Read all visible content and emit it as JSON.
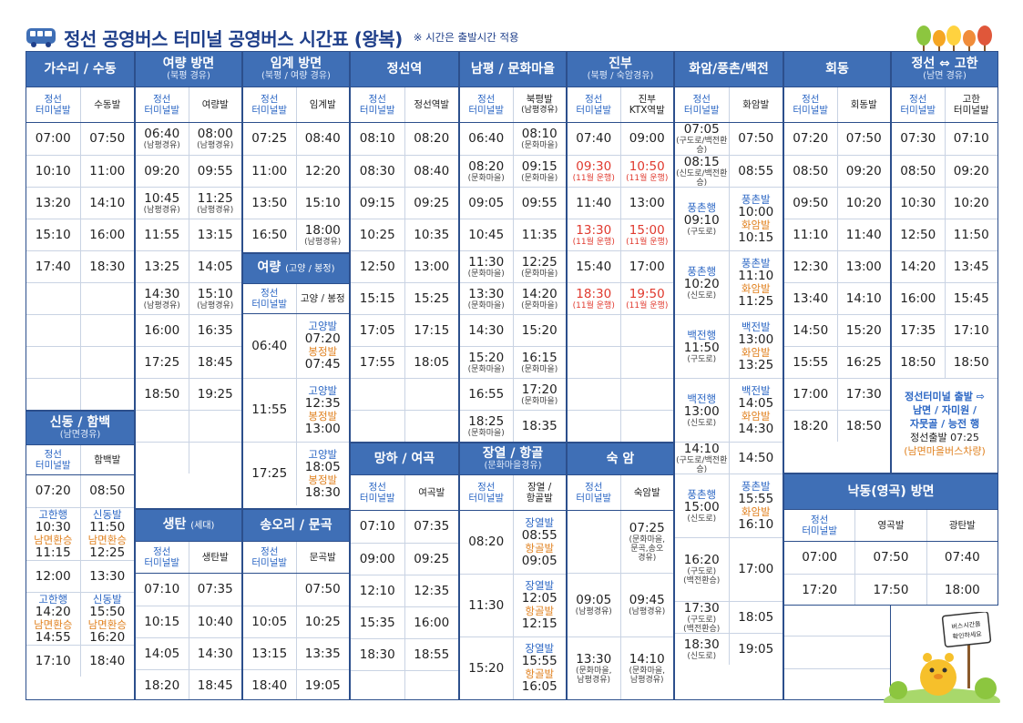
{
  "title": "정선 공영버스 터미널 공영버스 시간표 (왕복)",
  "note": "※ 시간은 출발시간 적용",
  "sign": "버스시간을 확인하세요",
  "routes": {
    "gasuri": {
      "name": "가수리 / 수동",
      "cols": [
        [
          "정선",
          "터미널발"
        ],
        [
          "수동발"
        ]
      ],
      "rows": [
        [
          "07:00",
          "07:50"
        ],
        [
          "10:10",
          "11:00"
        ],
        [
          "13:20",
          "14:10"
        ],
        [
          "15:10",
          "16:00"
        ],
        [
          "17:40",
          "18:30"
        ],
        [
          "",
          ""
        ],
        [
          "",
          ""
        ],
        [
          "",
          ""
        ],
        [
          "",
          ""
        ]
      ]
    },
    "sindong": {
      "name": "신동 / 함백",
      "sub": "(남면경유)",
      "cols": [
        [
          "정선",
          "터미널발"
        ],
        [
          "함백발"
        ]
      ],
      "rows": [
        [
          [
            "07:20"
          ],
          [
            "08:50"
          ]
        ],
        [
          [
            "고한행",
            "10:30",
            "남면환승",
            "11:15"
          ],
          [
            "신동발",
            "11:50",
            "남면환승",
            "12:25"
          ]
        ],
        [
          [
            "12:00"
          ],
          [
            "13:30"
          ]
        ],
        [
          [
            "고한행",
            "14:20",
            "남면환승",
            "14:55"
          ],
          [
            "신동발",
            "15:50",
            "남면환승",
            "16:20"
          ]
        ],
        [
          [
            "17:10"
          ],
          [
            "18:40"
          ]
        ]
      ]
    },
    "yeoryang": {
      "name": "여량 방면",
      "sub": "(북평 경유)",
      "cols": [
        [
          "정선",
          "터미널발"
        ],
        [
          "여량발"
        ]
      ],
      "rows": [
        [
          [
            "06:40",
            "(남평경유)"
          ],
          [
            "08:00",
            "(남평경유)"
          ]
        ],
        [
          [
            "09:20"
          ],
          [
            "09:55"
          ]
        ],
        [
          [
            "10:45",
            "(남평경유)"
          ],
          [
            "11:25",
            "(남평경유)"
          ]
        ],
        [
          [
            "11:55"
          ],
          [
            "13:15"
          ]
        ],
        [
          [
            "13:25"
          ],
          [
            "14:05"
          ]
        ],
        [
          [
            "14:30",
            "(남평경유)"
          ],
          [
            "15:10",
            "(남평경유)"
          ]
        ],
        [
          [
            "16:00"
          ],
          [
            "16:35"
          ]
        ],
        [
          [
            "17:25"
          ],
          [
            "18:45"
          ]
        ],
        [
          [
            "18:50"
          ],
          [
            "19:25"
          ]
        ],
        [
          [
            ""
          ],
          [
            ""
          ]
        ],
        [
          [
            ""
          ],
          [
            ""
          ]
        ]
      ]
    },
    "saengtan": {
      "name": "생탄",
      "sub": "(세대)",
      "cols": [
        [
          "정선",
          "터미널발"
        ],
        [
          "생탄발"
        ]
      ],
      "rows": [
        [
          "07:10",
          "07:35"
        ],
        [
          "10:15",
          "10:40"
        ],
        [
          "14:05",
          "14:30"
        ],
        [
          "18:20",
          "18:45"
        ]
      ]
    },
    "imgye": {
      "name": "임계 방면",
      "sub": "(북평 / 여량 경유)",
      "cols": [
        [
          "정선",
          "터미널발"
        ],
        [
          "임계발"
        ]
      ],
      "rows": [
        [
          [
            "07:25"
          ],
          [
            "08:40"
          ]
        ],
        [
          [
            "11:00"
          ],
          [
            "12:20"
          ]
        ],
        [
          [
            "13:50"
          ],
          [
            "15:10"
          ]
        ],
        [
          [
            "16:50"
          ],
          [
            "18:00",
            "(남평경유)"
          ]
        ]
      ]
    },
    "yeoryang2": {
      "name": "여량",
      "sub": "(고양 / 봉정)",
      "cols": [
        [
          "정선",
          "터미널발"
        ],
        [
          "고양 / 봉정"
        ]
      ],
      "rows": [
        [
          "06:40",
          "고양발",
          "07:20",
          "봉정발",
          "07:45"
        ],
        [
          "11:55",
          "고양발",
          "12:35",
          "봉정발",
          "13:00"
        ],
        [
          "17:25",
          "고양발",
          "18:05",
          "봉정발",
          "18:30"
        ]
      ]
    },
    "songori": {
      "name": "송오리 / 문곡",
      "cols": [
        [
          "정선",
          "터미널발"
        ],
        [
          "문곡발"
        ]
      ],
      "rows": [
        [
          "",
          "07:50"
        ],
        [
          "10:05",
          "10:25"
        ],
        [
          "13:15",
          "13:35"
        ],
        [
          "18:40",
          "19:05"
        ]
      ]
    },
    "jeongseon": {
      "name": "정선역",
      "cols": [
        [
          "정선",
          "터미널발"
        ],
        [
          "정선역발"
        ]
      ],
      "rows": [
        [
          "08:10",
          "08:20"
        ],
        [
          "08:30",
          "08:40"
        ],
        [
          "09:15",
          "09:25"
        ],
        [
          "10:25",
          "10:35"
        ],
        [
          "12:50",
          "13:00"
        ],
        [
          "15:15",
          "15:25"
        ],
        [
          "17:05",
          "17:15"
        ],
        [
          "17:55",
          "18:05"
        ],
        [
          "",
          ""
        ],
        [
          "",
          ""
        ]
      ]
    },
    "mangha": {
      "name": "망하 / 여곡",
      "cols": [
        [
          "정선",
          "터미널발"
        ],
        [
          "여곡발"
        ]
      ],
      "rows": [
        [
          "07:10",
          "07:35"
        ],
        [
          "09:00",
          "09:25"
        ],
        [
          "12:10",
          "12:35"
        ],
        [
          "15:35",
          "16:00"
        ],
        [
          "18:30",
          "18:55"
        ],
        [
          "",
          ""
        ]
      ]
    },
    "nampyeong": {
      "name": "남평 / 문화마을",
      "cols": [
        [
          "정선",
          "터미널발"
        ],
        [
          "북평발",
          "(남평경유)"
        ]
      ],
      "rows": [
        [
          [
            "06:40"
          ],
          [
            "08:10",
            "(문화마을)"
          ]
        ],
        [
          [
            "08:20",
            "(문화마을)"
          ],
          [
            "09:15",
            "(문화마을)"
          ]
        ],
        [
          [
            "09:05"
          ],
          [
            "09:55"
          ]
        ],
        [
          [
            "10:45"
          ],
          [
            "11:35"
          ]
        ],
        [
          [
            "11:30",
            "(문화마을)"
          ],
          [
            "12:25",
            "(문화마을)"
          ]
        ],
        [
          [
            "13:30",
            "(문화마을)"
          ],
          [
            "14:20",
            "(문화마을)"
          ]
        ],
        [
          [
            "14:30"
          ],
          [
            "15:20"
          ]
        ],
        [
          [
            "15:20",
            "(문화마을)"
          ],
          [
            "16:15",
            "(문화마을)"
          ]
        ],
        [
          [
            "16:55"
          ],
          [
            "17:20",
            "(문화마을)"
          ]
        ],
        [
          [
            "18:25",
            "(문화마을)"
          ],
          [
            "18:35"
          ]
        ]
      ]
    },
    "jangyeol": {
      "name": "장열 / 항골",
      "sub": "(문화마을경유)",
      "cols": [
        [
          "정선",
          "터미널발"
        ],
        [
          "장열 /",
          "항골발"
        ]
      ],
      "rows": [
        [
          "08:20",
          "장열발",
          "08:55",
          "항골발",
          "09:05"
        ],
        [
          "11:30",
          "장열발",
          "12:05",
          "항골발",
          "12:15"
        ],
        [
          "15:20",
          "장열발",
          "15:55",
          "항골발",
          "16:05"
        ]
      ]
    },
    "jinbu": {
      "name": "진부",
      "sub": "(북평 / 숙암경유)",
      "cols": [
        [
          "정선",
          "터미널발"
        ],
        [
          "진부",
          "KTX역발"
        ]
      ],
      "rows": [
        [
          [
            "07:40"
          ],
          [
            "09:00"
          ],
          false
        ],
        [
          [
            "09:30",
            "(11월 운행)"
          ],
          [
            "10:50",
            "(11월 운행)"
          ],
          true
        ],
        [
          [
            "11:40"
          ],
          [
            "13:00"
          ],
          false
        ],
        [
          [
            "13:30",
            "(11월 운행)"
          ],
          [
            "15:00",
            "(11월 운행)"
          ],
          true
        ],
        [
          [
            "15:40"
          ],
          [
            "17:00"
          ],
          false
        ],
        [
          [
            "18:30",
            "(11월 운행)"
          ],
          [
            "19:50",
            "(11월 운행)"
          ],
          true
        ],
        [
          [
            ""
          ],
          [
            ""
          ],
          false
        ],
        [
          [
            ""
          ],
          [
            ""
          ],
          false
        ],
        [
          [
            ""
          ],
          [
            ""
          ],
          false
        ],
        [
          [
            ""
          ],
          [
            ""
          ],
          false
        ]
      ]
    },
    "sugam": {
      "name": "숙 암",
      "cols": [
        [
          "정선",
          "터미널발"
        ],
        [
          "숙암발"
        ]
      ],
      "rows": [
        [
          [
            ""
          ],
          [
            "07:25",
            "(문화마을,",
            "문곡,송오",
            "경유)"
          ]
        ],
        [
          [
            "09:05",
            "(남평경유)"
          ],
          [
            "09:45",
            "(남평경유)"
          ]
        ],
        [
          [
            "13:30",
            "(문화마을,",
            "남평경유)"
          ],
          [
            "14:10",
            "(문화마을,",
            "남평경유)"
          ]
        ]
      ]
    },
    "hwaam": {
      "name": "화암/풍촌/백전",
      "cols": [
        [
          "정선",
          "터미널발"
        ],
        [
          "화암발"
        ]
      ],
      "rows": [
        [
          [
            "07:05",
            "(구도로/백전환승)"
          ],
          [
            "07:50"
          ]
        ],
        [
          [
            "08:15",
            "(신도로/백전환승)"
          ],
          [
            "08:55"
          ]
        ],
        [
          [
            "풍촌행",
            "09:10",
            "(구도로)"
          ],
          [
            "풍촌발",
            "10:00",
            "화암발",
            "10:15"
          ]
        ],
        [
          [
            "풍촌행",
            "10:20",
            "(신도로)"
          ],
          [
            "풍촌발",
            "11:10",
            "화암발",
            "11:25"
          ]
        ],
        [
          [
            "백전행",
            "11:50",
            "(구도로)"
          ],
          [
            "백전발",
            "13:00",
            "화암발",
            "13:25"
          ]
        ],
        [
          [
            "백전행",
            "13:00",
            "(신도로)"
          ],
          [
            "백전발",
            "14:05",
            "화암발",
            "14:30"
          ]
        ],
        [
          [
            "14:10",
            "(구도로/백전환승)"
          ],
          [
            "14:50"
          ]
        ],
        [
          [
            "풍촌행",
            "15:00",
            "(신도로)"
          ],
          [
            "풍촌발",
            "15:55",
            "화암발",
            "16:10"
          ]
        ],
        [
          [
            "16:20",
            "(구도로)",
            "(백전환승)"
          ],
          [
            "17:00"
          ]
        ],
        [
          [
            "17:30",
            "(구도로)",
            "(백전환승)"
          ],
          [
            "18:05"
          ]
        ],
        [
          [
            "18:30",
            "(신도로)"
          ],
          [
            "19:05"
          ]
        ]
      ]
    },
    "hoedong": {
      "name": "회동",
      "cols": [
        [
          "정선",
          "터미널발"
        ],
        [
          "회동발"
        ]
      ],
      "rows": [
        [
          "07:20",
          "07:50"
        ],
        [
          "08:50",
          "09:20"
        ],
        [
          "09:50",
          "10:20"
        ],
        [
          "11:10",
          "11:40"
        ],
        [
          "12:30",
          "13:00"
        ],
        [
          "13:40",
          "14:10"
        ],
        [
          "14:50",
          "15:20"
        ],
        [
          "15:55",
          "16:25"
        ],
        [
          "17:00",
          "17:30"
        ],
        [
          "18:20",
          "18:50"
        ]
      ]
    },
    "gohan": {
      "name": "정선 ⇔ 고한",
      "sub": "(남면 경유)",
      "cols": [
        [
          "정선",
          "터미널발"
        ],
        [
          "고한",
          "터미널발"
        ]
      ],
      "rows": [
        [
          "07:30",
          "07:10"
        ],
        [
          "08:50",
          "09:20"
        ],
        [
          "10:30",
          "10:20"
        ],
        [
          "12:50",
          "11:50"
        ],
        [
          "14:20",
          "13:45"
        ],
        [
          "16:00",
          "15:45"
        ],
        [
          "17:35",
          "17:10"
        ],
        [
          "18:50",
          "18:50"
        ]
      ],
      "note": [
        "정선터미널 출발 ⇨",
        "남면 / 자미원 /",
        "자뭇골 / 능전 행",
        "정선출발 07:25",
        "(남면마을버스차량)"
      ]
    },
    "nakdong": {
      "name": "낙동(영곡) 방면",
      "cols": [
        [
          "정선",
          "터미널발"
        ],
        [
          "영곡발"
        ],
        [
          "광탄발"
        ]
      ],
      "rows": [
        [
          "07:00",
          "07:50",
          "07:40"
        ],
        [
          "17:20",
          "17:50",
          "18:00"
        ]
      ]
    }
  },
  "colors": {
    "header": "#3f6fb6",
    "border": "#2c4f8c",
    "blue": "#2c67c4",
    "orange": "#e0811f",
    "red": "#e03a2f"
  }
}
